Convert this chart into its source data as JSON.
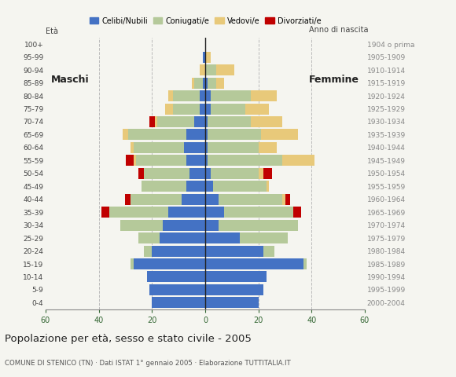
{
  "age_groups": [
    "0-4",
    "5-9",
    "10-14",
    "15-19",
    "20-24",
    "25-29",
    "30-34",
    "35-39",
    "40-44",
    "45-49",
    "50-54",
    "55-59",
    "60-64",
    "65-69",
    "70-74",
    "75-79",
    "80-84",
    "85-89",
    "90-94",
    "95-99",
    "100+"
  ],
  "birth_years": [
    "2000-2004",
    "1995-1999",
    "1990-1994",
    "1985-1989",
    "1980-1984",
    "1975-1979",
    "1970-1974",
    "1965-1969",
    "1960-1964",
    "1955-1959",
    "1950-1954",
    "1945-1949",
    "1940-1944",
    "1935-1939",
    "1930-1934",
    "1925-1929",
    "1920-1924",
    "1915-1919",
    "1910-1914",
    "1905-1909",
    "1904 o prima"
  ],
  "male_celibe": [
    20,
    21,
    22,
    27,
    20,
    17,
    16,
    14,
    9,
    7,
    6,
    7,
    8,
    7,
    4,
    2,
    2,
    1,
    0,
    1,
    0
  ],
  "male_coniugato": [
    0,
    0,
    0,
    1,
    3,
    8,
    16,
    22,
    19,
    17,
    17,
    19,
    19,
    22,
    14,
    10,
    10,
    3,
    0,
    0,
    0
  ],
  "male_vedovo": [
    0,
    0,
    0,
    0,
    0,
    0,
    0,
    0,
    0,
    0,
    0,
    1,
    1,
    2,
    1,
    3,
    2,
    1,
    2,
    0,
    0
  ],
  "male_divorziato": [
    0,
    0,
    0,
    0,
    0,
    0,
    0,
    3,
    2,
    0,
    2,
    3,
    0,
    0,
    2,
    0,
    0,
    0,
    0,
    0,
    0
  ],
  "female_celibe": [
    20,
    22,
    23,
    37,
    22,
    13,
    5,
    7,
    5,
    3,
    2,
    1,
    1,
    1,
    1,
    2,
    2,
    1,
    0,
    0,
    0
  ],
  "female_coniugato": [
    0,
    0,
    0,
    1,
    4,
    18,
    30,
    26,
    24,
    20,
    18,
    28,
    19,
    20,
    16,
    13,
    15,
    3,
    4,
    0,
    0
  ],
  "female_vedovo": [
    0,
    0,
    0,
    0,
    0,
    0,
    0,
    0,
    1,
    1,
    2,
    12,
    7,
    14,
    12,
    9,
    10,
    3,
    7,
    2,
    0
  ],
  "female_divorziata": [
    0,
    0,
    0,
    0,
    0,
    0,
    0,
    3,
    2,
    0,
    3,
    0,
    0,
    0,
    0,
    0,
    0,
    0,
    0,
    0,
    0
  ],
  "colors": {
    "celibe": "#4472c4",
    "coniugato": "#b5c99a",
    "vedovo": "#e8c97a",
    "divorziato": "#c00000"
  },
  "xlim": 60,
  "title": "Popolazione per età, sesso e stato civile - 2005",
  "subtitle": "COMUNE DI STENICO (TN) · Dati ISTAT 1° gennaio 2005 · Elaborazione TUTTITALIA.IT",
  "legend_labels": [
    "Celibi/Nubili",
    "Coniugati/e",
    "Vedovi/e",
    "Divorziati/e"
  ],
  "label_maschi": "Maschi",
  "label_femmine": "Femmine",
  "label_eta": "Età",
  "label_anno": "Anno di nascita",
  "bg_color": "#f5f5f0",
  "bar_height": 0.85,
  "grid_color": "#bbbbbb"
}
